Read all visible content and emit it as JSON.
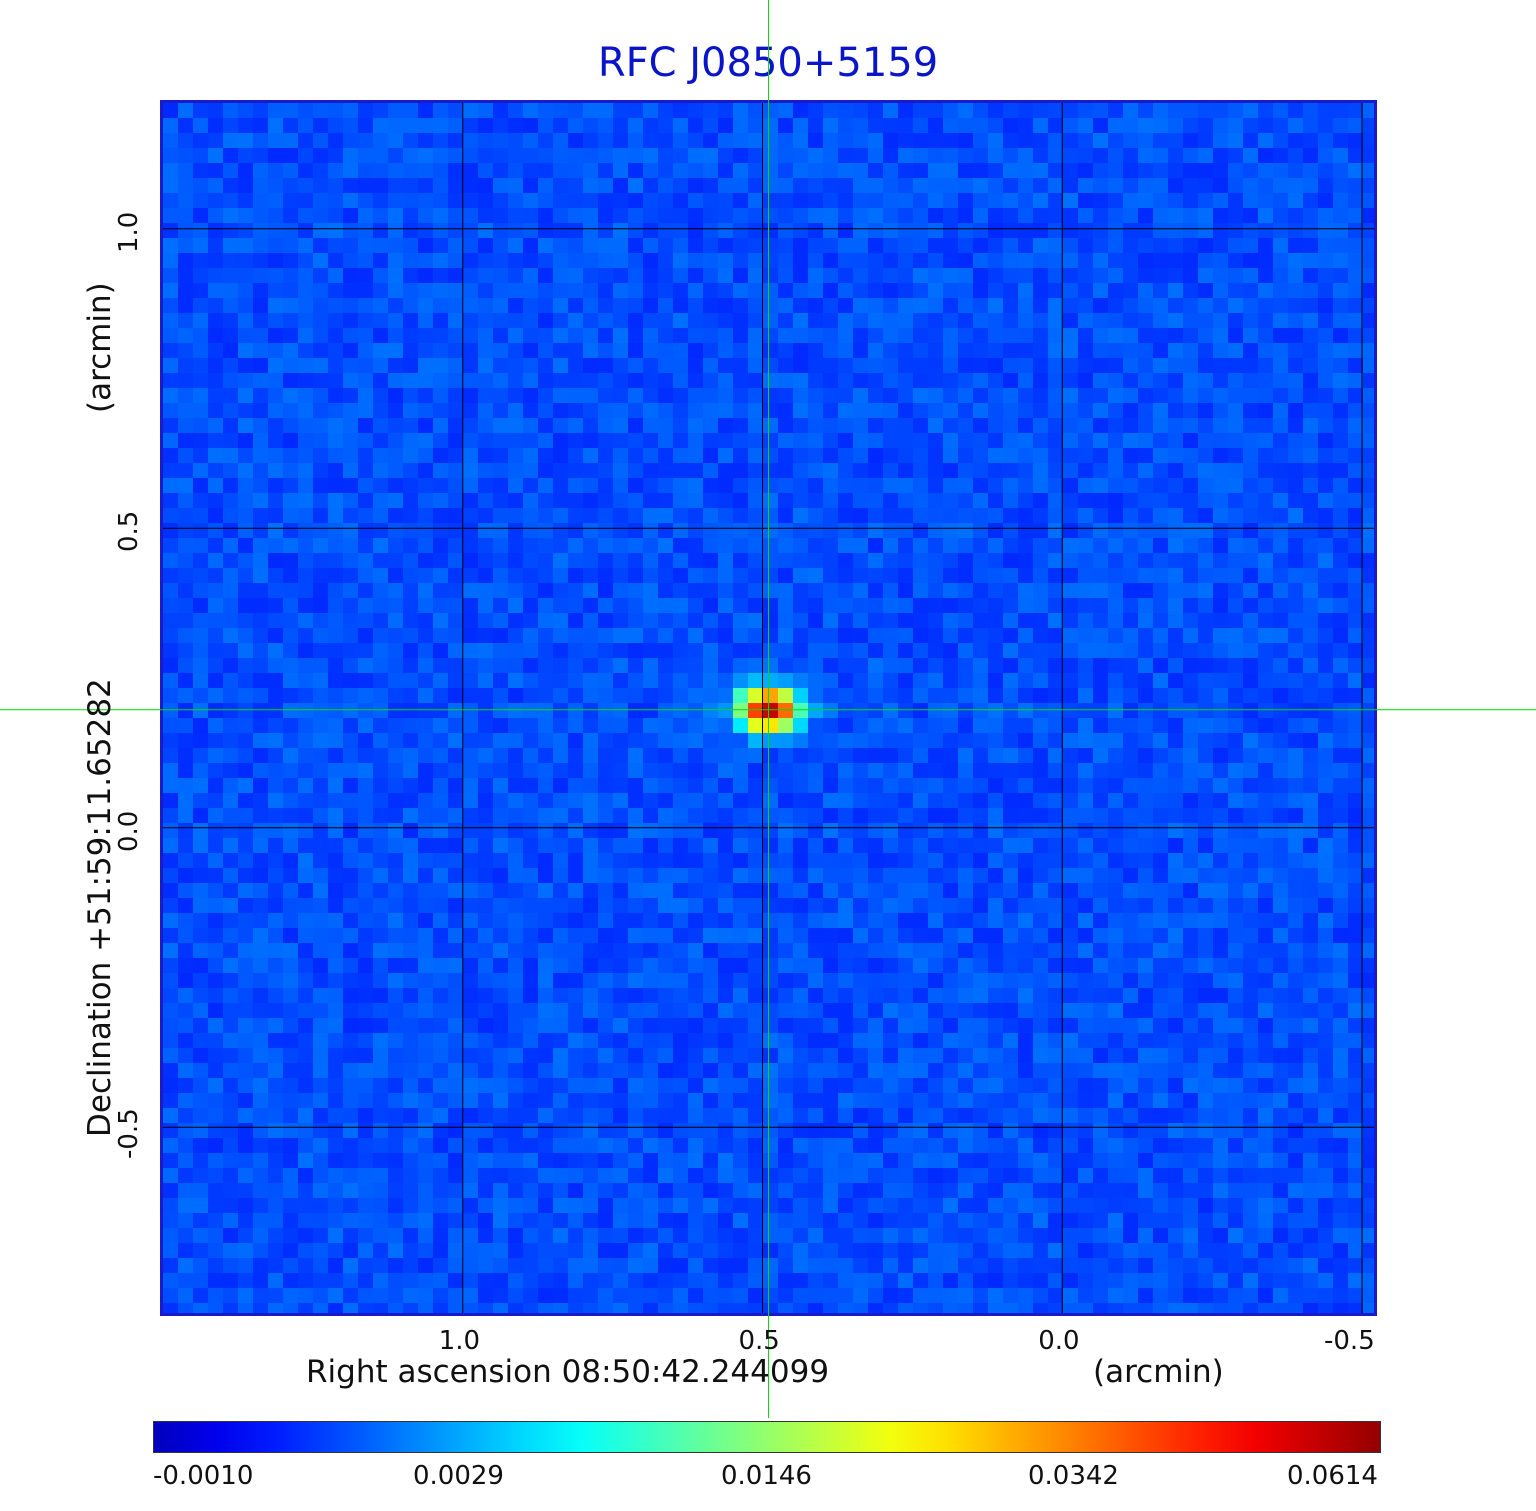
{
  "chart_data": {
    "type": "heatmap",
    "title": "RFC J0850+5159",
    "xlabel": "Right ascension  08:50:42.244099",
    "xunit": "(arcmin)",
    "ylabel": "Declination  +51:59:11.65282",
    "yunit": "(arcmin)",
    "xlim": [
      1.5,
      -0.52
    ],
    "ylim": [
      -0.81,
      1.21
    ],
    "x_ticks": [
      "1.0",
      "0.5",
      "0.0",
      "-0.5"
    ],
    "x_tick_values": [
      1.0,
      0.5,
      0.0,
      -0.5
    ],
    "y_ticks": [
      "1.0",
      "0.5",
      "0.0",
      "-0.5"
    ],
    "y_tick_values": [
      1.0,
      0.5,
      0.0,
      -0.5
    ],
    "grid": true,
    "crosshair": {
      "x": 0.49,
      "y": 0.197,
      "color": "#00dd00"
    },
    "source": {
      "x": 0.49,
      "y": 0.197,
      "peak": 0.0614
    },
    "colorbar": {
      "colormap": "jet",
      "labels": [
        "-0.0010",
        "0.0029",
        "0.0146",
        "0.0342",
        "0.0614"
      ],
      "values": [
        -0.001,
        0.0029,
        0.0146,
        0.0342,
        0.0614
      ]
    },
    "colors": {
      "frame": "#1a1ac8",
      "title": "#0a14c8",
      "background_map": "#1e5af0",
      "grid": "#000000"
    }
  }
}
